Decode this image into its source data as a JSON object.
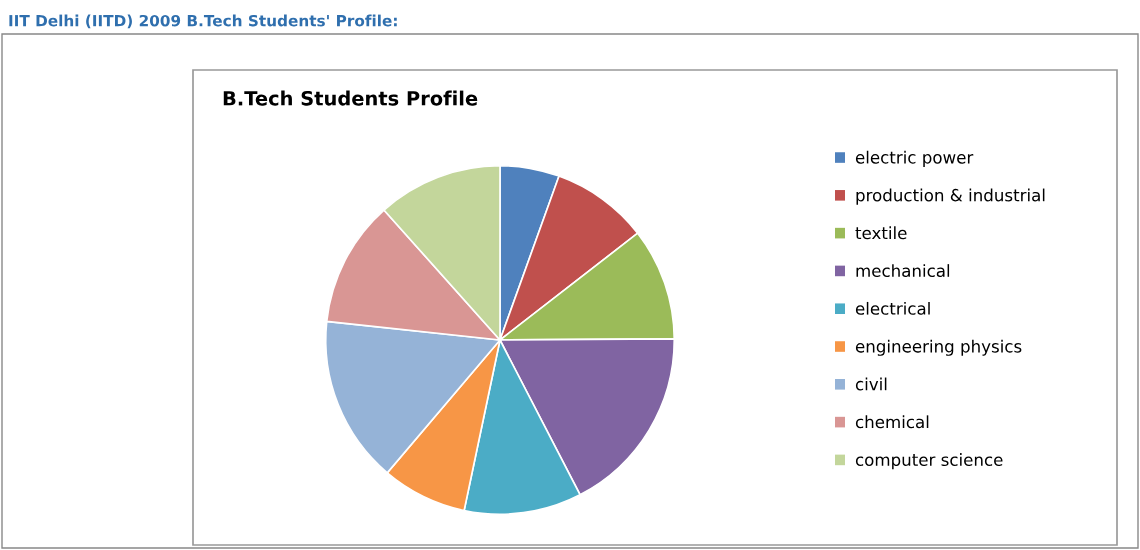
{
  "chart_data": {
    "type": "pie",
    "title": "IIT Delhi (IITD) 2009 B.Tech Students' Profile:",
    "subtitle": "B.Tech Students Profile",
    "categories": [
      "electric power",
      "production & industrial",
      "textile",
      "mechanical",
      "electrical",
      "engineering physics",
      "civil",
      "chemical",
      "computer science"
    ],
    "values": [
      5.5,
      9.0,
      10.4,
      17.5,
      10.9,
      7.9,
      15.5,
      11.7,
      11.6
    ],
    "colors": [
      "#4f81bd",
      "#c0504d",
      "#9bbb59",
      "#8064a2",
      "#4bacc6",
      "#f79646",
      "#95b3d7",
      "#d99694",
      "#c3d69b"
    ],
    "legend": "right"
  }
}
